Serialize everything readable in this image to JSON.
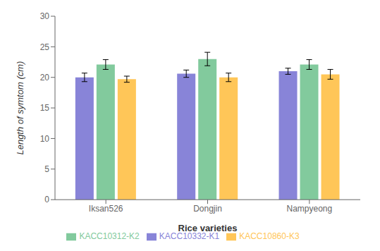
{
  "chart_data": {
    "type": "bar",
    "categories": [
      "Iksan526",
      "Dongjin",
      "Nampyeong"
    ],
    "series": [
      {
        "name": "KACC10332-K1",
        "values": [
          20.0,
          20.6,
          21.0
        ],
        "errors": [
          0.7,
          0.6,
          0.5
        ]
      },
      {
        "name": "KACC10312-K2",
        "values": [
          22.1,
          23.0,
          22.1
        ],
        "errors": [
          0.8,
          1.1,
          0.8
        ]
      },
      {
        "name": "KACC10860-K3",
        "values": [
          19.7,
          20.0,
          20.5
        ],
        "errors": [
          0.5,
          0.7,
          0.8
        ]
      }
    ],
    "xlabel": "Rice varieties",
    "ylabel": "Length of symtom (cm)",
    "ylim": [
      0,
      30
    ],
    "yticks": [
      0,
      5,
      10,
      15,
      20,
      25,
      30
    ],
    "grid": false,
    "legend": "bottom"
  }
}
